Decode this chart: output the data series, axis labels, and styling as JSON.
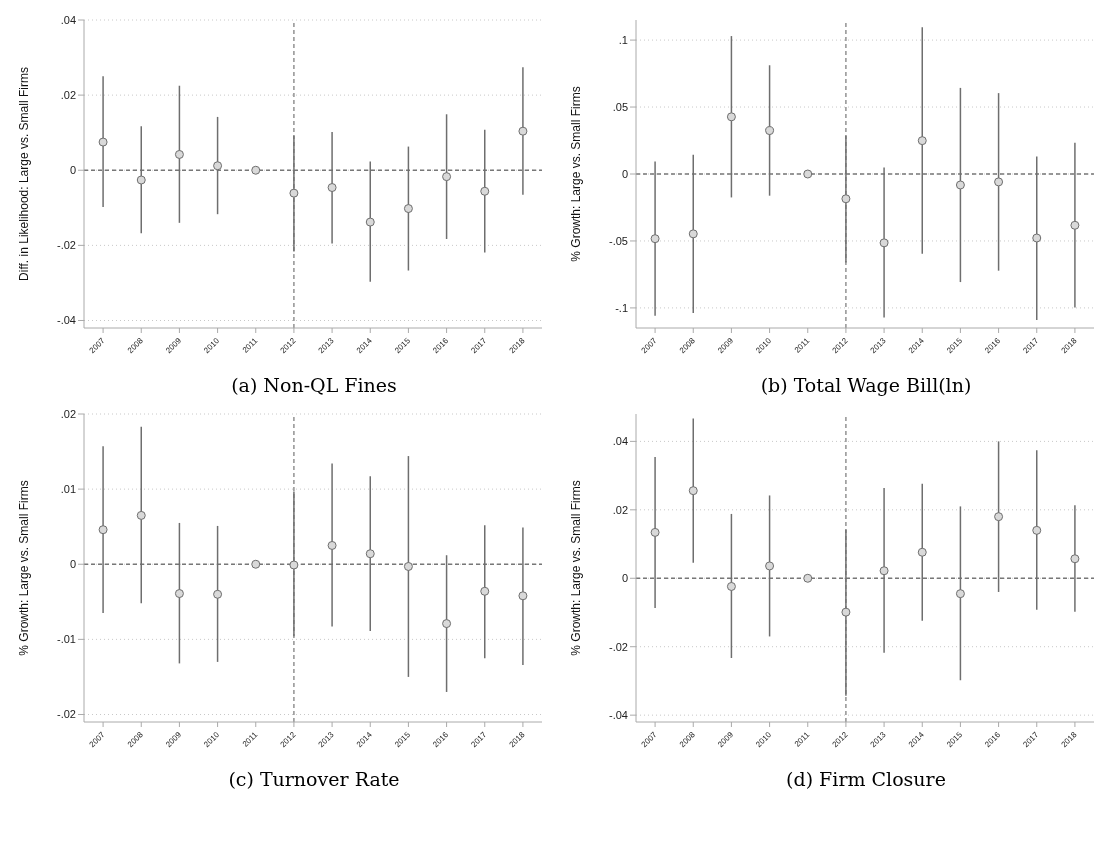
{
  "chart_data": [
    {
      "type": "scatter",
      "title": "(a) Non-QL Fines",
      "ylabel": "Diff. in Likelihood: Large vs. Small Firms",
      "x": [
        2007,
        2008,
        2009,
        2010,
        2011,
        2012,
        2013,
        2014,
        2015,
        2016,
        2017,
        2018
      ],
      "xlim": [
        2006.5,
        2018.5
      ],
      "xticks": [
        2007,
        2008,
        2009,
        2010,
        2011,
        2012,
        2013,
        2014,
        2015,
        2016,
        2017,
        2018
      ],
      "ylim": [
        -0.042,
        0.04
      ],
      "yticks": [
        {
          "value": -0.04,
          "label": "-.04"
        },
        {
          "value": -0.02,
          "label": "-.02"
        },
        {
          "value": 0,
          "label": "0"
        },
        {
          "value": 0.02,
          "label": ".02"
        },
        {
          "value": 0.04,
          "label": ".04"
        }
      ],
      "grid": "y",
      "marker": "circle",
      "color": "#6e6e6e",
      "values": [
        0.0075,
        -0.0026,
        0.0042,
        0.0012,
        0,
        -0.0061,
        -0.0046,
        -0.0138,
        -0.0102,
        -0.0017,
        -0.0056,
        0.0104
      ],
      "errors": [
        [
          -0.0098,
          0.025
        ],
        [
          -0.0168,
          0.0117
        ],
        [
          -0.014,
          0.0225
        ],
        [
          -0.0117,
          0.0142
        ],
        null,
        [
          -0.0216,
          0.0092
        ],
        [
          -0.0195,
          0.0102
        ],
        [
          -0.0297,
          0.0023
        ],
        [
          -0.0267,
          0.0063
        ],
        [
          -0.0183,
          0.0149
        ],
        [
          -0.0219,
          0.0108
        ],
        [
          -0.0065,
          0.0274
        ]
      ],
      "ref_lines": [
        {
          "axis": "y",
          "value": 0,
          "line_style": "dashed",
          "color": "#777777"
        },
        {
          "axis": "x",
          "value": 2012,
          "line_style": "dashed",
          "color": "#777777"
        }
      ]
    },
    {
      "type": "scatter",
      "title": "(b) Total Wage Bill(ln)",
      "ylabel": "% Growth: Large vs. Small Firms",
      "x": [
        2007,
        2008,
        2009,
        2010,
        2011,
        2012,
        2013,
        2014,
        2015,
        2016,
        2017,
        2018
      ],
      "xlim": [
        2006.5,
        2018.5
      ],
      "xticks": [
        2007,
        2008,
        2009,
        2010,
        2011,
        2012,
        2013,
        2014,
        2015,
        2016,
        2017,
        2018
      ],
      "ylim": [
        -0.115,
        0.115
      ],
      "yticks": [
        {
          "value": -0.1,
          "label": "-.1"
        },
        {
          "value": -0.05,
          "label": "-.05"
        },
        {
          "value": 0,
          "label": "0"
        },
        {
          "value": 0.05,
          "label": ".05"
        },
        {
          "value": 0.1,
          "label": ".1"
        }
      ],
      "grid": "y",
      "marker": "circle",
      "color": "#6e6e6e",
      "values": [
        -0.0483,
        -0.0447,
        0.0427,
        0.0324,
        0,
        -0.0185,
        -0.0514,
        0.0249,
        -0.0082,
        -0.0059,
        -0.0478,
        -0.0383
      ],
      "errors": [
        [
          -0.1059,
          0.0093
        ],
        [
          -0.1038,
          0.0144
        ],
        [
          -0.0175,
          0.103
        ],
        [
          -0.0162,
          0.0812
        ],
        null,
        [
          -0.066,
          0.0285
        ],
        [
          -0.1072,
          0.0049
        ],
        [
          -0.0596,
          0.1095
        ],
        [
          -0.0807,
          0.0643
        ],
        [
          -0.0722,
          0.0604
        ],
        [
          -0.109,
          0.0131
        ],
        [
          -0.0997,
          0.0234
        ]
      ],
      "ref_lines": [
        {
          "axis": "y",
          "value": 0,
          "line_style": "dashed",
          "color": "#777777"
        },
        {
          "axis": "x",
          "value": 2012,
          "line_style": "dashed",
          "color": "#777777"
        }
      ]
    },
    {
      "type": "scatter",
      "title": "(c) Turnover Rate",
      "ylabel": "% Growth: Large vs. Small Firms",
      "x": [
        2007,
        2008,
        2009,
        2010,
        2011,
        2012,
        2013,
        2014,
        2015,
        2016,
        2017,
        2018
      ],
      "xlim": [
        2006.5,
        2018.5
      ],
      "xticks": [
        2007,
        2008,
        2009,
        2010,
        2011,
        2012,
        2013,
        2014,
        2015,
        2016,
        2017,
        2018
      ],
      "ylim": [
        -0.021,
        0.02
      ],
      "yticks": [
        {
          "value": -0.02,
          "label": "-.02"
        },
        {
          "value": -0.01,
          "label": "-.01"
        },
        {
          "value": 0,
          "label": "0"
        },
        {
          "value": 0.01,
          "label": ".01"
        },
        {
          "value": 0.02,
          "label": ".02"
        }
      ],
      "grid": "y",
      "marker": "circle",
      "color": "#6e6e6e",
      "values": [
        0.0046,
        0.0065,
        -0.0039,
        -0.004,
        0,
        -0.0001,
        0.0025,
        0.0014,
        -0.0003,
        -0.0079,
        -0.0036,
        -0.0042
      ],
      "errors": [
        [
          -0.0065,
          0.0157
        ],
        [
          -0.0052,
          0.0183
        ],
        [
          -0.0132,
          0.0055
        ],
        [
          -0.013,
          0.0051
        ],
        null,
        [
          -0.0096,
          0.0097
        ],
        [
          -0.0083,
          0.0134
        ],
        [
          -0.0089,
          0.0117
        ],
        [
          -0.015,
          0.0144
        ],
        [
          -0.017,
          0.0012
        ],
        [
          -0.0125,
          0.0052
        ],
        [
          -0.0134,
          0.0049
        ]
      ],
      "ref_lines": [
        {
          "axis": "y",
          "value": 0,
          "line_style": "dashed",
          "color": "#777777"
        },
        {
          "axis": "x",
          "value": 2012,
          "line_style": "dashed",
          "color": "#777777"
        }
      ]
    },
    {
      "type": "scatter",
      "title": "(d) Firm Closure",
      "ylabel": "% Growth: Large vs. Small Firms",
      "x": [
        2007,
        2008,
        2009,
        2010,
        2011,
        2012,
        2013,
        2014,
        2015,
        2016,
        2017,
        2018
      ],
      "xlim": [
        2006.5,
        2018.5
      ],
      "xticks": [
        2007,
        2008,
        2009,
        2010,
        2011,
        2012,
        2013,
        2014,
        2015,
        2016,
        2017,
        2018
      ],
      "ylim": [
        -0.042,
        0.048
      ],
      "yticks": [
        {
          "value": -0.04,
          "label": "-.04"
        },
        {
          "value": -0.02,
          "label": "-.02"
        },
        {
          "value": 0,
          "label": "0"
        },
        {
          "value": 0.02,
          "label": ".02"
        },
        {
          "value": 0.04,
          "label": ".04"
        }
      ],
      "grid": "y",
      "marker": "circle",
      "color": "#6e6e6e",
      "values": [
        0.0134,
        0.0256,
        -0.0024,
        0.0036,
        0,
        -0.0099,
        0.0022,
        0.0076,
        -0.0045,
        0.018,
        0.014,
        0.0057
      ],
      "errors": [
        [
          -0.0087,
          0.0354
        ],
        [
          0.0045,
          0.0467
        ],
        [
          -0.0233,
          0.0188
        ],
        [
          -0.017,
          0.0242
        ],
        null,
        [
          -0.0343,
          0.0142
        ],
        [
          -0.0218,
          0.0264
        ],
        [
          -0.0124,
          0.0276
        ],
        [
          -0.0298,
          0.021
        ],
        [
          -0.004,
          0.04
        ],
        [
          -0.0092,
          0.0374
        ],
        [
          -0.0098,
          0.0213
        ]
      ],
      "ref_lines": [
        {
          "axis": "y",
          "value": 0,
          "line_style": "dashed",
          "color": "#777777"
        },
        {
          "axis": "x",
          "value": 2012,
          "line_style": "dashed",
          "color": "#777777"
        }
      ]
    }
  ]
}
